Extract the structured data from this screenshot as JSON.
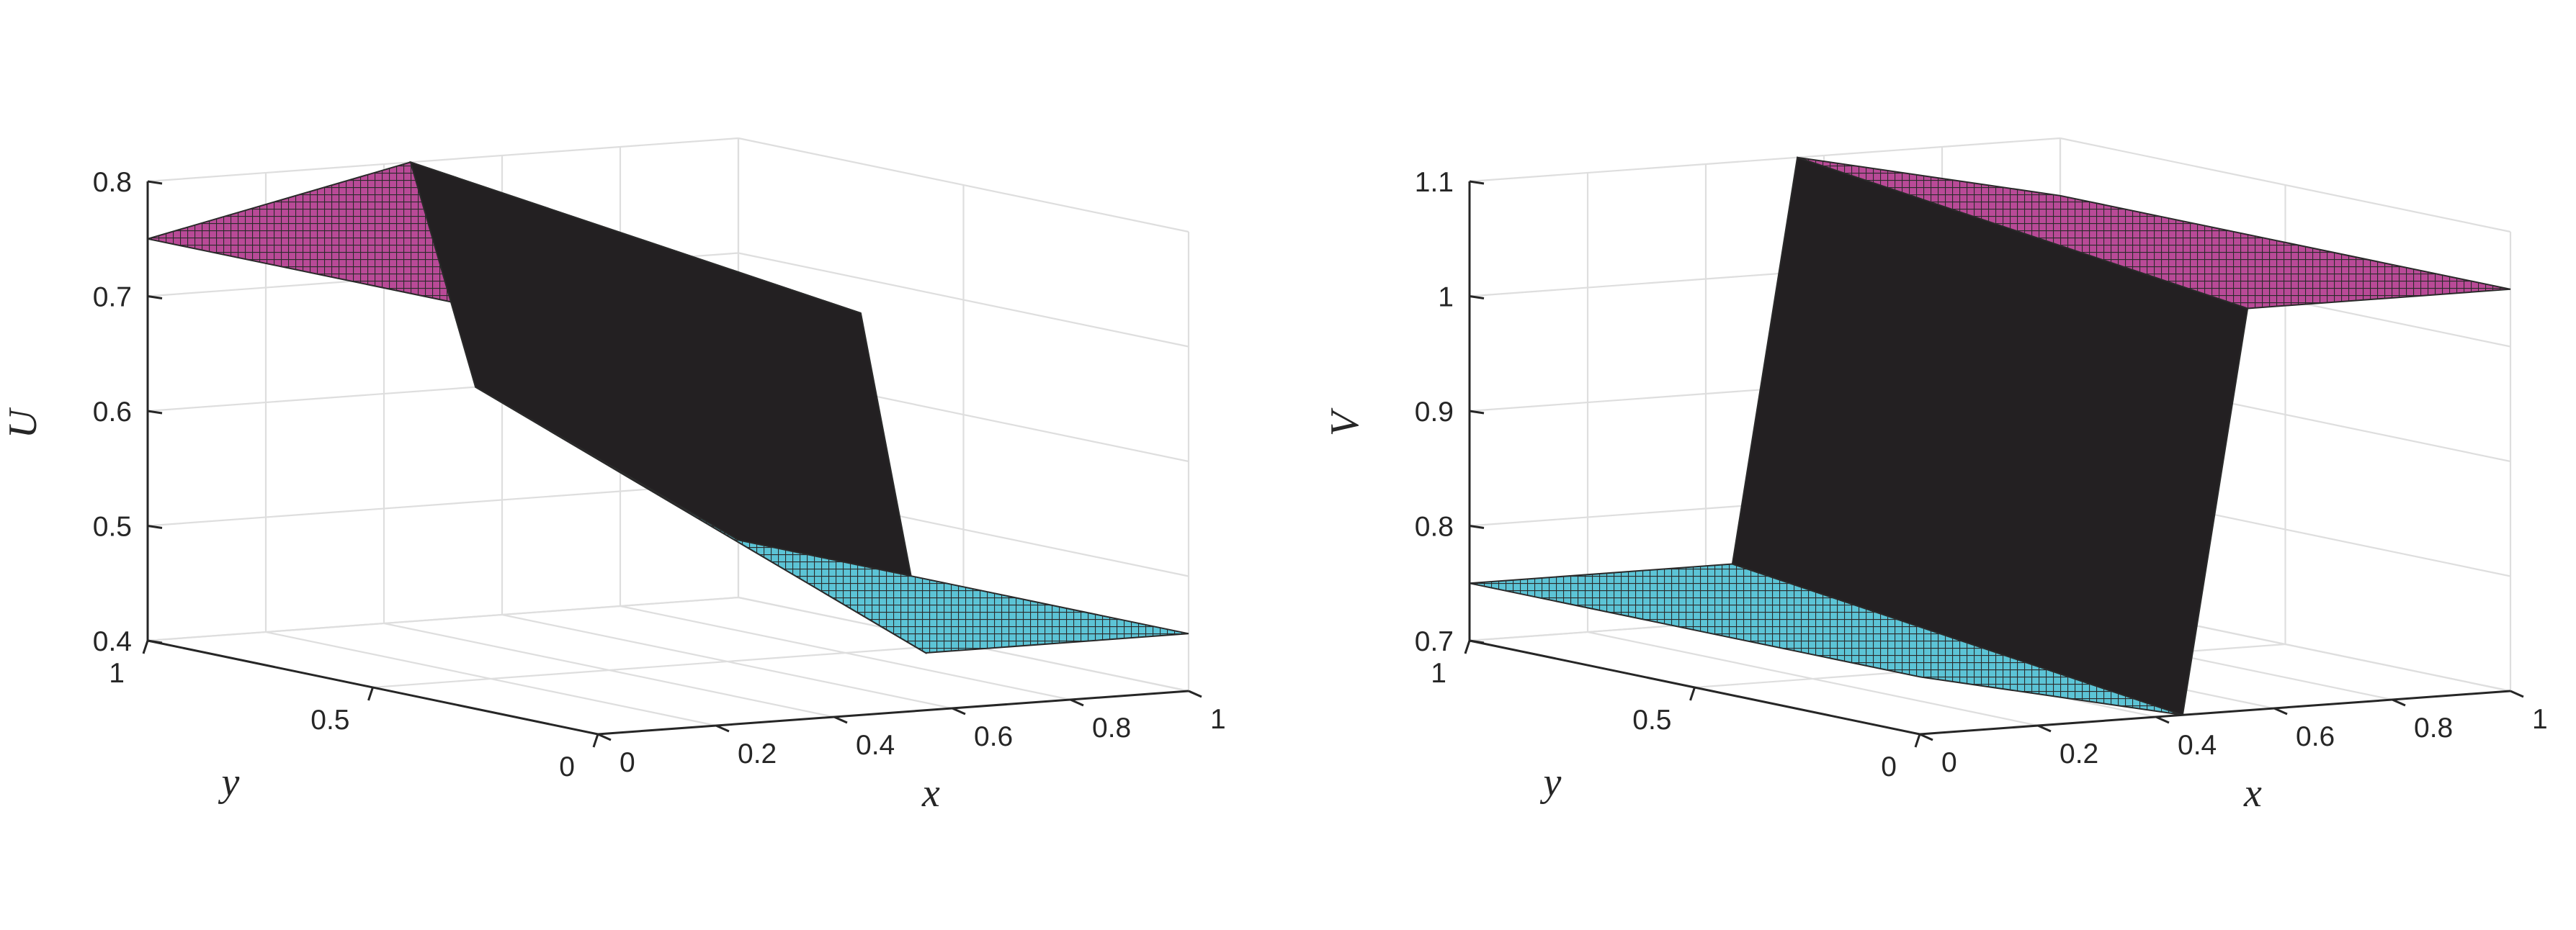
{
  "chart_data": [
    {
      "type": "surface",
      "zlabel": "U",
      "xlabel": "x",
      "ylabel": "y",
      "xlim": [
        0,
        1
      ],
      "ylim": [
        0,
        1
      ],
      "zlim": [
        0.4,
        0.8
      ],
      "x_ticks": [
        "0",
        "0.2",
        "0.4",
        "0.6",
        "0.8",
        "1"
      ],
      "y_ticks": [
        "0",
        "0.5",
        "1"
      ],
      "z_ticks": [
        "0.4",
        "0.5",
        "0.6",
        "0.7",
        "0.8"
      ],
      "grid": true,
      "colors": {
        "high": "#b94a97",
        "low": "#5cc4d6",
        "edge": "#2a2a2a"
      },
      "surface": {
        "front": "x = 0.5",
        "left_value": 0.75,
        "right_value": 0.45,
        "overshoot_peak": 0.8,
        "overshoot_dip": 0.6
      }
    },
    {
      "type": "surface",
      "zlabel": "V",
      "xlabel": "x",
      "ylabel": "y",
      "xlim": [
        0,
        1
      ],
      "ylim": [
        0,
        1
      ],
      "zlim": [
        0.7,
        1.1
      ],
      "x_ticks": [
        "0",
        "0.2",
        "0.4",
        "0.6",
        "0.8",
        "1"
      ],
      "y_ticks": [
        "0",
        "0.5",
        "1"
      ],
      "z_ticks": [
        "0.7",
        "0.8",
        "0.9",
        "1",
        "1.1"
      ],
      "grid": true,
      "colors": {
        "high": "#b94a97",
        "low": "#5cc4d6",
        "edge": "#2a2a2a"
      },
      "surface": {
        "front": "x = 0.5",
        "left_value": 0.75,
        "right_value": 1.05,
        "overshoot_peak": 1.1,
        "overshoot_dip": 0.7
      }
    }
  ]
}
